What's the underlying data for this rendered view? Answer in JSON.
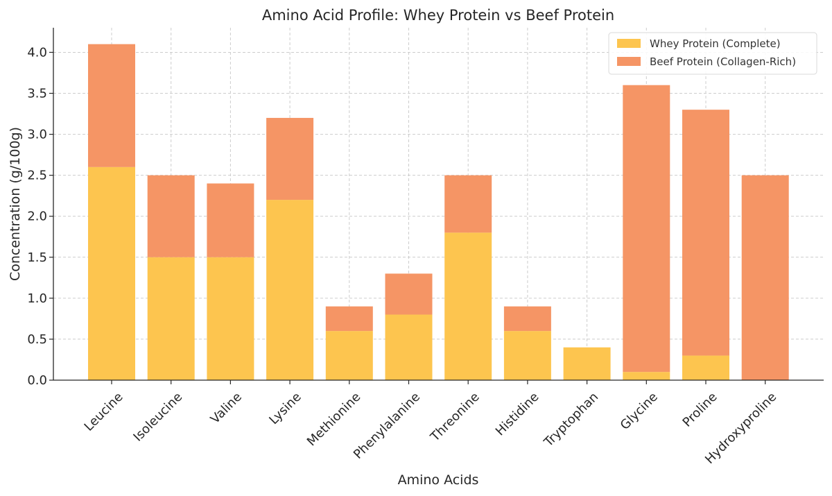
{
  "chart_data": {
    "type": "bar",
    "stacked": true,
    "title": "Amino Acid Profile: Whey Protein vs Beef Protein",
    "xlabel": "Amino Acids",
    "ylabel": "Concentration (g/100g)",
    "ylim": [
      0,
      4.3
    ],
    "yticks": [
      "0.0",
      "0.5",
      "1.0",
      "1.5",
      "2.0",
      "2.5",
      "3.0",
      "3.5",
      "4.0"
    ],
    "grid": true,
    "legend_position": "top-right",
    "categories": [
      "Leucine",
      "Isoleucine",
      "Valine",
      "Lysine",
      "Methionine",
      "Phenylalanine",
      "Threonine",
      "Histidine",
      "Tryptophan",
      "Glycine",
      "Proline",
      "Hydroxyproline"
    ],
    "series": [
      {
        "name": "Whey Protein (Complete)",
        "color": "#fdc54f",
        "values": [
          2.6,
          1.5,
          1.5,
          2.2,
          0.6,
          0.8,
          1.8,
          0.6,
          0.4,
          0.1,
          0.3,
          0.0
        ]
      },
      {
        "name": "Beef Protein (Collagen-Rich)",
        "color": "#f59565",
        "values": [
          1.5,
          1.0,
          0.9,
          1.0,
          0.3,
          0.5,
          0.7,
          0.3,
          0.0,
          3.5,
          3.0,
          2.5
        ]
      }
    ]
  }
}
